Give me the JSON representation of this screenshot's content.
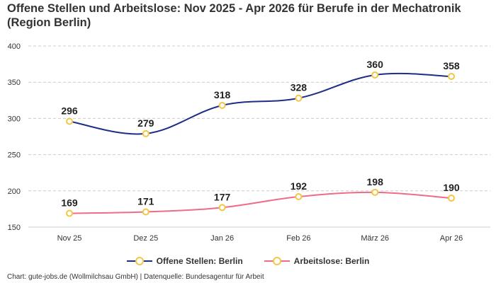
{
  "title": "Offene Stellen und Arbeitslose: Nov 2025 - Apr 2026 für Berufe in der Mechatronik (Region Berlin)",
  "footer": "Chart: gute-jobs.de (Wollmilchsau GmbH) | Datenquelle: Bundesagentur für Arbeit",
  "colors": {
    "series1": "#1f2d86",
    "series2": "#f06b86",
    "marker_border": "#f2c744",
    "grid": "#cccccc"
  },
  "chart_data": {
    "type": "line",
    "x": [
      "Nov 25",
      "Dez 25",
      "Jan 26",
      "Feb 26",
      "März 26",
      "Apr 26"
    ],
    "yticks": [
      "150",
      "200",
      "250",
      "300",
      "350",
      "400"
    ],
    "ylim": [
      150,
      400
    ],
    "grid": true,
    "legend_position": "bottom-center",
    "series": [
      {
        "name": "Offene Stellen: Berlin",
        "values": [
          296,
          279,
          318,
          328,
          360,
          358
        ],
        "labels": [
          "296",
          "279",
          "318",
          "328",
          "360",
          "358"
        ]
      },
      {
        "name": "Arbeitslose: Berlin",
        "values": [
          169,
          171,
          177,
          192,
          198,
          190
        ],
        "labels": [
          "169",
          "171",
          "177",
          "192",
          "198",
          "190"
        ]
      }
    ]
  }
}
